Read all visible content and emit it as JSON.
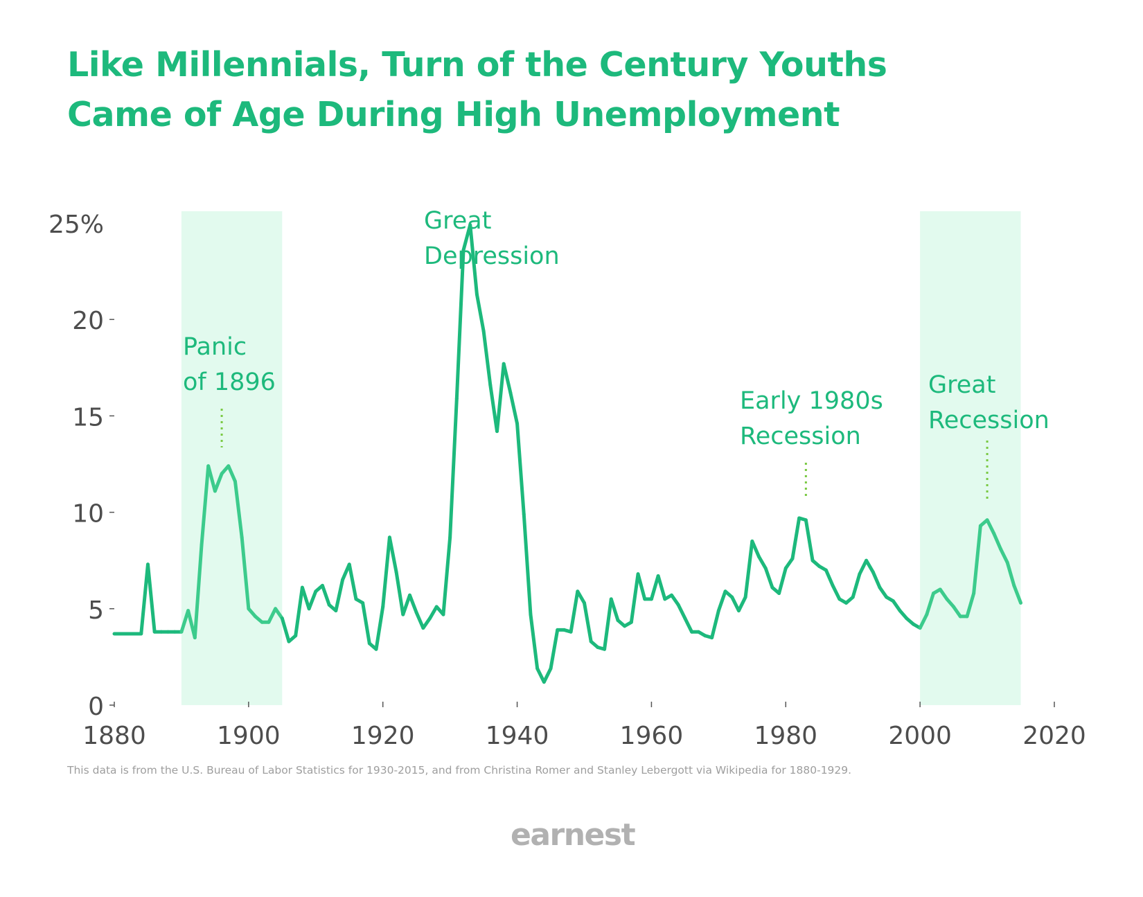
{
  "title": {
    "line1": "Like Millennials, Turn of the Century Youths",
    "line2": "Came of Age During High Unemployment"
  },
  "chart_data": {
    "type": "line",
    "title": "Like Millennials, Turn of the Century Youths Came of Age During High Unemployment",
    "xlabel": "",
    "ylabel": "",
    "xlim": [
      1880,
      2020
    ],
    "ylim": [
      0,
      25
    ],
    "x_ticks": [
      "1880",
      "1900",
      "1920",
      "1940",
      "1960",
      "1980",
      "2000",
      "2020"
    ],
    "y_ticks": [
      "0",
      "5",
      "10",
      "15",
      "20",
      "25%"
    ],
    "grid": false,
    "line_color": "#1db97c",
    "shade_color": "#e2faee",
    "annotation_color": "#7ac943",
    "shaded_regions": [
      {
        "from": 1890,
        "to": 1905
      },
      {
        "from": 2000,
        "to": 2015
      }
    ],
    "annotations": [
      {
        "lines": [
          "Panic",
          "of 1896"
        ],
        "year": 1896
      },
      {
        "lines": [
          "Great",
          "Depression"
        ],
        "year": 1934
      },
      {
        "lines": [
          "Early 1980s",
          "Recession"
        ],
        "year": 1983
      },
      {
        "lines": [
          "Great",
          "Recession"
        ],
        "year": 2010
      }
    ],
    "series": [
      {
        "x": [
          1880,
          1881,
          1882,
          1883,
          1884,
          1885,
          1886,
          1887,
          1888,
          1889,
          1890,
          1891,
          1892,
          1893,
          1894,
          1895,
          1896,
          1897,
          1898,
          1899,
          1900,
          1901,
          1902,
          1903,
          1904,
          1905,
          1906,
          1907,
          1908,
          1909,
          1910,
          1911,
          1912,
          1913,
          1914,
          1915,
          1916,
          1917,
          1918,
          1919,
          1920,
          1921,
          1922,
          1923,
          1924,
          1925,
          1926,
          1927,
          1928,
          1929,
          1930,
          1931,
          1932,
          1933,
          1934,
          1935,
          1936,
          1937,
          1938,
          1939,
          1940,
          1941,
          1942,
          1943,
          1944,
          1945,
          1946,
          1947,
          1948,
          1949,
          1950,
          1951,
          1952,
          1953,
          1954,
          1955,
          1956,
          1957,
          1958,
          1959,
          1960,
          1961,
          1962,
          1963,
          1964,
          1965,
          1966,
          1967,
          1968,
          1969,
          1970,
          1971,
          1972,
          1973,
          1974,
          1975,
          1976,
          1977,
          1978,
          1979,
          1980,
          1981,
          1982,
          1983,
          1984,
          1985,
          1986,
          1987,
          1988,
          1989,
          1990,
          1991,
          1992,
          1993,
          1994,
          1995,
          1996,
          1997,
          1998,
          1999,
          2000,
          2001,
          2002,
          2003,
          2004,
          2005,
          2006,
          2007,
          2008,
          2009,
          2010,
          2011,
          2012,
          2013,
          2014,
          2015
        ],
        "values": [
          3.7,
          3.7,
          3.7,
          3.7,
          3.7,
          7.3,
          3.8,
          3.8,
          3.8,
          3.8,
          3.8,
          4.9,
          3.5,
          8.3,
          12.4,
          11.1,
          12.0,
          12.4,
          11.6,
          8.7,
          5.0,
          4.6,
          4.3,
          4.3,
          5.0,
          4.5,
          3.3,
          3.6,
          6.1,
          5.0,
          5.9,
          6.2,
          5.2,
          4.9,
          6.5,
          7.3,
          5.5,
          5.3,
          3.2,
          2.9,
          5.1,
          8.7,
          6.9,
          4.7,
          5.7,
          4.8,
          4.0,
          4.5,
          5.1,
          4.7,
          8.7,
          15.9,
          23.6,
          24.9,
          21.3,
          19.4,
          16.6,
          14.2,
          17.7,
          16.2,
          14.6,
          9.9,
          4.7,
          1.9,
          1.2,
          1.9,
          3.9,
          3.9,
          3.8,
          5.9,
          5.3,
          3.3,
          3.0,
          2.9,
          5.5,
          4.4,
          4.1,
          4.3,
          6.8,
          5.5,
          5.5,
          6.7,
          5.5,
          5.7,
          5.2,
          4.5,
          3.8,
          3.8,
          3.6,
          3.5,
          4.9,
          5.9,
          5.6,
          4.9,
          5.6,
          8.5,
          7.7,
          7.1,
          6.1,
          5.8,
          7.1,
          7.6,
          9.7,
          9.6,
          7.5,
          7.2,
          7.0,
          6.2,
          5.5,
          5.3,
          5.6,
          6.8,
          7.5,
          6.9,
          6.1,
          5.6,
          5.4,
          4.9,
          4.5,
          4.2,
          4.0,
          4.7,
          5.8,
          6.0,
          5.5,
          5.1,
          4.6,
          4.6,
          5.8,
          9.3,
          9.6,
          8.9,
          8.1,
          7.4,
          6.2,
          5.3
        ]
      }
    ]
  },
  "footnote": "This data is from the U.S. Bureau of Labor Statistics for 1930-2015, and from Christina Romer and Stanley Lebergott via Wikipedia for 1880-1929.",
  "logo_text": "earnest"
}
